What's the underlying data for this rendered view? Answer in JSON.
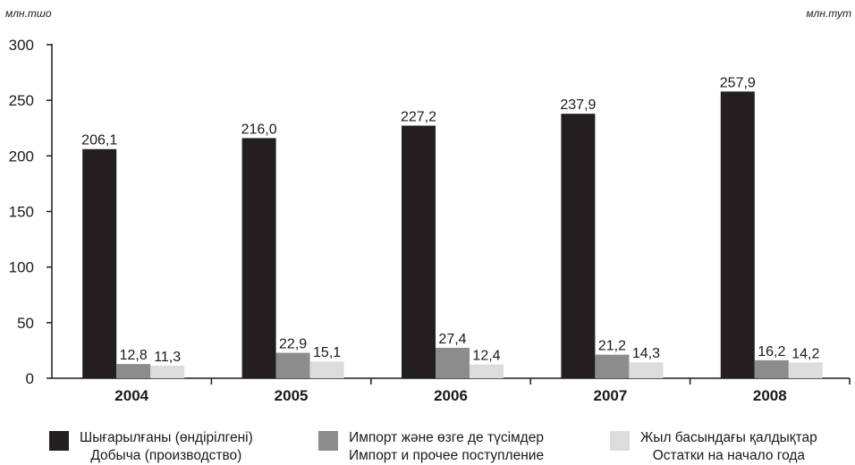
{
  "units": {
    "left": "млн.тшо",
    "right": "млн.тут"
  },
  "chart_data": {
    "type": "bar",
    "categories": [
      "2004",
      "2005",
      "2006",
      "2007",
      "2008"
    ],
    "series": [
      {
        "name": "Шығарылғаны (өндірілгені)",
        "name_ru": "Добыча (производство)",
        "color": "#231f20",
        "values": [
          206.1,
          216.0,
          227.2,
          237.9,
          257.9
        ],
        "labels": [
          "206,1",
          "216,0",
          "227,2",
          "237,9",
          "257,9"
        ]
      },
      {
        "name": "Импорт және өзге де түсімдер",
        "name_ru": "Импорт и прочее поступление",
        "color": "#8c8c8c",
        "values": [
          12.8,
          22.9,
          27.4,
          21.2,
          16.2
        ],
        "labels": [
          "12,8",
          "22,9",
          "27,4",
          "21,2",
          "16,2"
        ]
      },
      {
        "name": "Жыл басындағы қалдықтар",
        "name_ru": "Остатки на начало года",
        "color": "#dcdcdc",
        "values": [
          11.3,
          15.1,
          12.4,
          14.3,
          14.2
        ],
        "labels": [
          "11,3",
          "15,1",
          "12,4",
          "14,3",
          "14,2"
        ]
      }
    ],
    "ylim": [
      0,
      300
    ],
    "yticks": [
      "0",
      "50",
      "100",
      "150",
      "200",
      "250",
      "300"
    ],
    "grid": false,
    "legend_position": "bottom"
  }
}
